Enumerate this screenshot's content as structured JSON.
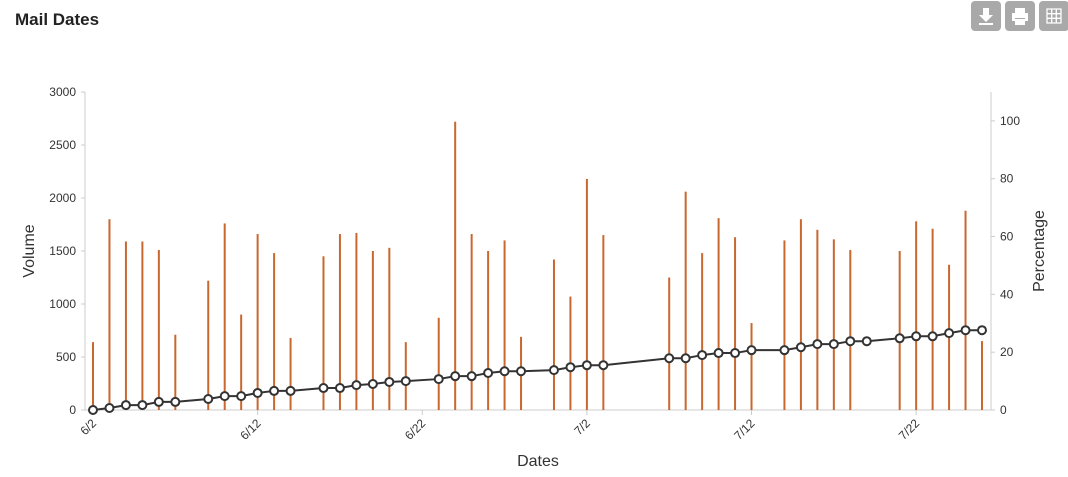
{
  "chart_data": {
    "type": "bar-line",
    "title": "Mail Dates",
    "x_label": "Dates",
    "y_label": "Volume",
    "y2_label": "Percentage",
    "x": [
      "6/2",
      "6/3",
      "6/4",
      "6/5",
      "6/6",
      "6/7",
      "6/9",
      "6/10",
      "6/11",
      "6/12",
      "6/13",
      "6/14",
      "6/16",
      "6/17",
      "6/18",
      "6/19",
      "6/20",
      "6/21",
      "6/23",
      "6/24",
      "6/25",
      "6/26",
      "6/27",
      "6/28",
      "6/30",
      "7/1",
      "7/2",
      "7/3",
      "7/7",
      "7/8",
      "7/9",
      "7/10",
      "7/11",
      "7/12",
      "7/14",
      "7/15",
      "7/16",
      "7/17",
      "7/18",
      "7/19",
      "7/21",
      "7/22",
      "7/23",
      "7/24",
      "7/25",
      "7/26"
    ],
    "xlim": [
      "6/2",
      "7/26"
    ],
    "xticks": [
      "6/2",
      "6/12",
      "6/22",
      "7/2",
      "7/12",
      "7/22"
    ],
    "series": [
      {
        "name": "Volume",
        "type": "bar",
        "color": "#c8682f",
        "values": [
          640,
          1800,
          1590,
          1590,
          1510,
          710,
          1220,
          1760,
          900,
          1660,
          1480,
          680,
          1450,
          1660,
          1670,
          1500,
          1530,
          640,
          870,
          2720,
          1660,
          1500,
          1600,
          690,
          1420,
          1070,
          2180,
          1650,
          1250,
          2060,
          1480,
          1810,
          1630,
          820,
          1600,
          1800,
          1700,
          1610,
          1510,
          null,
          1500,
          1780,
          1710,
          1370,
          1880,
          650
        ]
      },
      {
        "name": "Percentage",
        "type": "line",
        "axis": "y2",
        "color": "#333333",
        "values": [
          0,
          0.7,
          1.7,
          1.7,
          2.8,
          2.8,
          3.8,
          4.8,
          4.8,
          5.9,
          6.6,
          6.6,
          7.6,
          7.6,
          8.6,
          9,
          9.7,
          10,
          10.7,
          11.7,
          11.7,
          12.8,
          13.4,
          13.4,
          13.8,
          14.8,
          15.5,
          15.5,
          17.9,
          17.9,
          19,
          19.7,
          19.7,
          20.7,
          20.7,
          21.7,
          22.8,
          22.8,
          23.8,
          23.8,
          24.8,
          25.5,
          25.5,
          26.6,
          27.6,
          27.6
        ]
      }
    ],
    "ylim": [
      0,
      3000
    ],
    "yticks": [
      0,
      500,
      1000,
      1500,
      2000,
      2500,
      3000
    ],
    "y2lim": [
      0,
      110
    ],
    "y2ticks": [
      0,
      20,
      40,
      60,
      80,
      100
    ]
  }
}
